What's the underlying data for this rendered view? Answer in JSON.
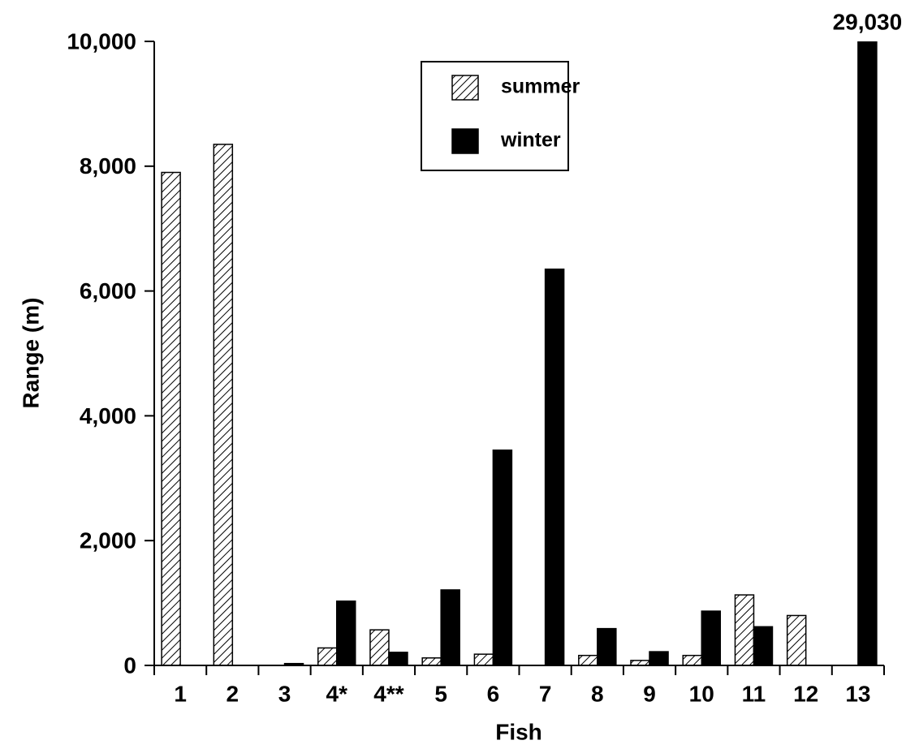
{
  "chart_data": {
    "type": "bar",
    "xlabel": "Fish",
    "ylabel": "Range (m)",
    "categories": [
      "1",
      "2",
      "3",
      "4*",
      "4**",
      "5",
      "6",
      "7",
      "8",
      "9",
      "10",
      "11",
      "12",
      "13"
    ],
    "series": [
      {
        "name": "summer",
        "color": "#ffffff",
        "pattern": "hatch",
        "values": [
          7900,
          8350,
          0,
          280,
          570,
          120,
          180,
          0,
          160,
          80,
          160,
          1130,
          800,
          0
        ]
      },
      {
        "name": "winter",
        "color": "#000000",
        "values": [
          0,
          0,
          30,
          1030,
          210,
          1210,
          3450,
          6350,
          590,
          220,
          870,
          620,
          0,
          29030
        ],
        "value_labels": [
          null,
          null,
          null,
          null,
          null,
          null,
          null,
          null,
          null,
          null,
          null,
          null,
          null,
          "29,030"
        ]
      }
    ],
    "ylim": [
      0,
      10000
    ],
    "yticks": [
      0,
      {
        "value": 2000,
        "label": "2,000"
      },
      {
        "value": 4000,
        "label": "4,000"
      },
      {
        "value": 6000,
        "label": "6,000"
      },
      {
        "value": 8000,
        "label": "8,000"
      },
      {
        "value": 10000,
        "label": "10,000"
      }
    ],
    "grid": false,
    "legend": "top-center"
  }
}
